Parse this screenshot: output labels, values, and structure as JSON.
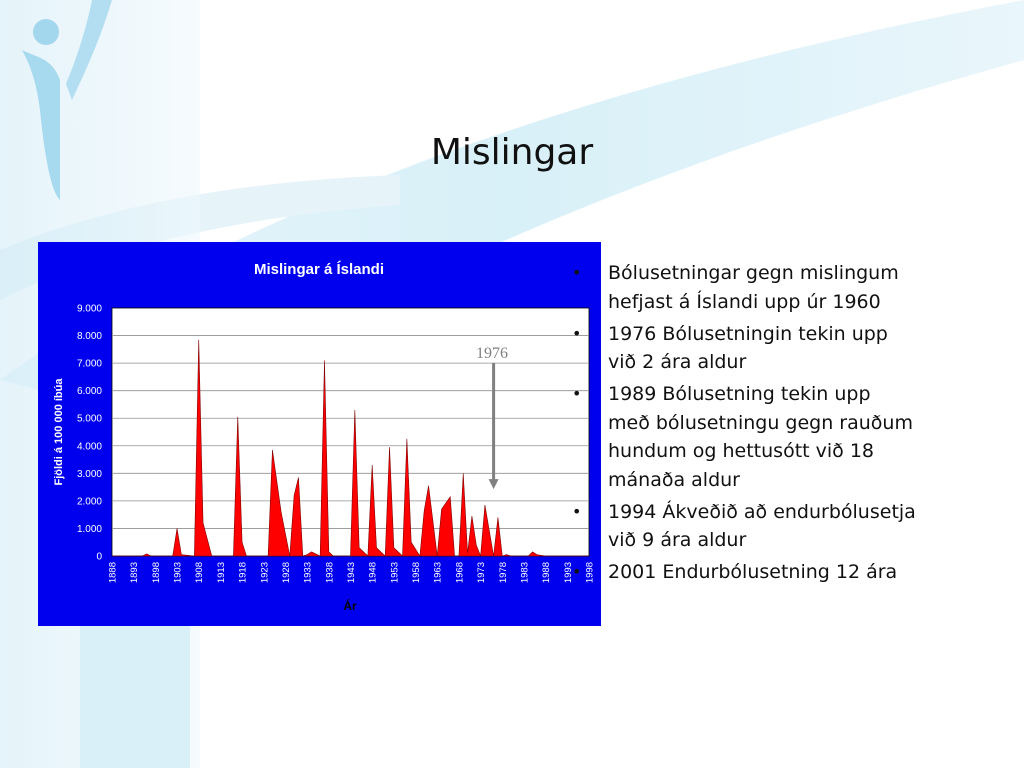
{
  "slide": {
    "title": "Mislingar"
  },
  "annotation": {
    "label": "1976"
  },
  "bullets": [
    "Bólusetningar gegn mislingum hefjast á Íslandi upp úr 1960",
    "1976  Bólusetningin tekin upp við 2 ára aldur",
    "1989  Bólusetning tekin upp með bólusetningu gegn rauðum hundum og hettusótt við 18 mánaða aldur",
    "1994 Ákveðið að endurbólusetja við 9 ára aldur",
    "2001 Endurbólusetning 12 ára"
  ],
  "colors": {
    "chart_background": "#0000ee",
    "area_fill": "#ff0000",
    "arrow": "#808080"
  },
  "chart_data": {
    "type": "area",
    "title": "Mislingar á Íslandi",
    "xlabel": "Ár",
    "ylabel": "Fjöldi á 100 000 íbúa",
    "ylim": [
      0,
      9000
    ],
    "xlim": [
      1888,
      1998
    ],
    "grid": true,
    "y_ticks": [
      0,
      1000,
      2000,
      3000,
      4000,
      5000,
      6000,
      7000,
      8000,
      9000
    ],
    "y_tick_labels": [
      "0",
      "1.000",
      "2.000",
      "3.000",
      "4.000",
      "5.000",
      "6.000",
      "7.000",
      "8.000",
      "9.000"
    ],
    "x_tick_labels": [
      "1888",
      "1893",
      "1898",
      "1903",
      "1908",
      "1913",
      "1918",
      "1923",
      "1928",
      "1933",
      "1938",
      "1943",
      "1948",
      "1953",
      "1958",
      "1963",
      "1968",
      "1973",
      "1978",
      "1983",
      "1988",
      "1993",
      "1998"
    ],
    "x": [
      1888,
      1895,
      1896,
      1897,
      1902,
      1903,
      1904,
      1907,
      1908,
      1909,
      1911,
      1916,
      1917,
      1918,
      1919,
      1924,
      1925,
      1927,
      1929,
      1930,
      1931,
      1932,
      1933,
      1934,
      1936,
      1937,
      1938,
      1939,
      1943,
      1944,
      1945,
      1947,
      1948,
      1949,
      1951,
      1952,
      1953,
      1955,
      1956,
      1957,
      1959,
      1960,
      1961,
      1963,
      1964,
      1966,
      1967,
      1968,
      1969,
      1970,
      1971,
      1972,
      1973,
      1974,
      1976,
      1977,
      1978,
      1979,
      1980,
      1984,
      1985,
      1986,
      1988,
      1998
    ],
    "y": [
      0,
      0,
      80,
      0,
      0,
      1000,
      50,
      0,
      7850,
      1200,
      0,
      0,
      5050,
      500,
      0,
      0,
      3850,
      1600,
      0,
      2200,
      2850,
      0,
      50,
      150,
      0,
      7100,
      150,
      0,
      0,
      5300,
      300,
      0,
      3300,
      300,
      0,
      3950,
      300,
      0,
      4250,
      500,
      0,
      1650,
      2550,
      0,
      1700,
      2150,
      0,
      0,
      3000,
      100,
      1450,
      400,
      0,
      1850,
      0,
      1400,
      0,
      50,
      0,
      0,
      150,
      50,
      0,
      0
    ],
    "annotation": {
      "text": "1976",
      "x": 1976,
      "type": "arrow",
      "y_from": 7000,
      "y_to": 2500
    }
  }
}
